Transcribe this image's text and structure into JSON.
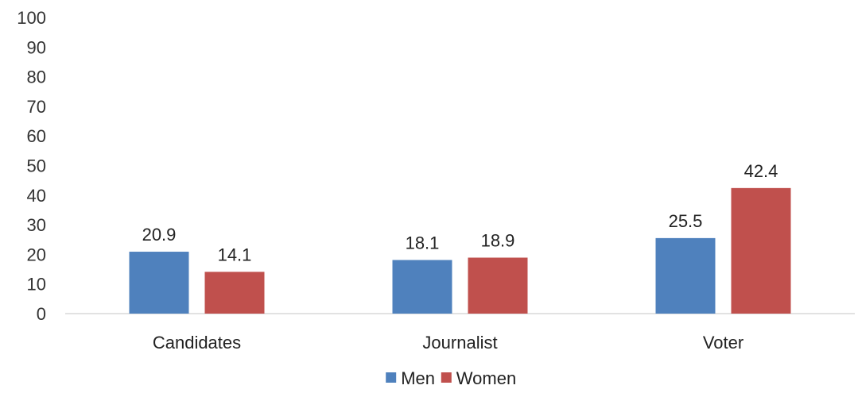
{
  "chart_data": {
    "type": "bar",
    "categories": [
      "Candidates",
      "Journalist",
      "Voter"
    ],
    "series": [
      {
        "name": "Men",
        "values": [
          20.9,
          18.1,
          25.5
        ],
        "color": "#4F81BD"
      },
      {
        "name": "Women",
        "values": [
          14.1,
          18.9,
          42.4
        ],
        "color": "#C0504D"
      }
    ],
    "yticks": [
      0,
      10,
      20,
      30,
      40,
      50,
      60,
      70,
      80,
      90,
      100
    ],
    "ylim": [
      0,
      100
    ],
    "grid": false,
    "legend_position": "bottom-center"
  }
}
